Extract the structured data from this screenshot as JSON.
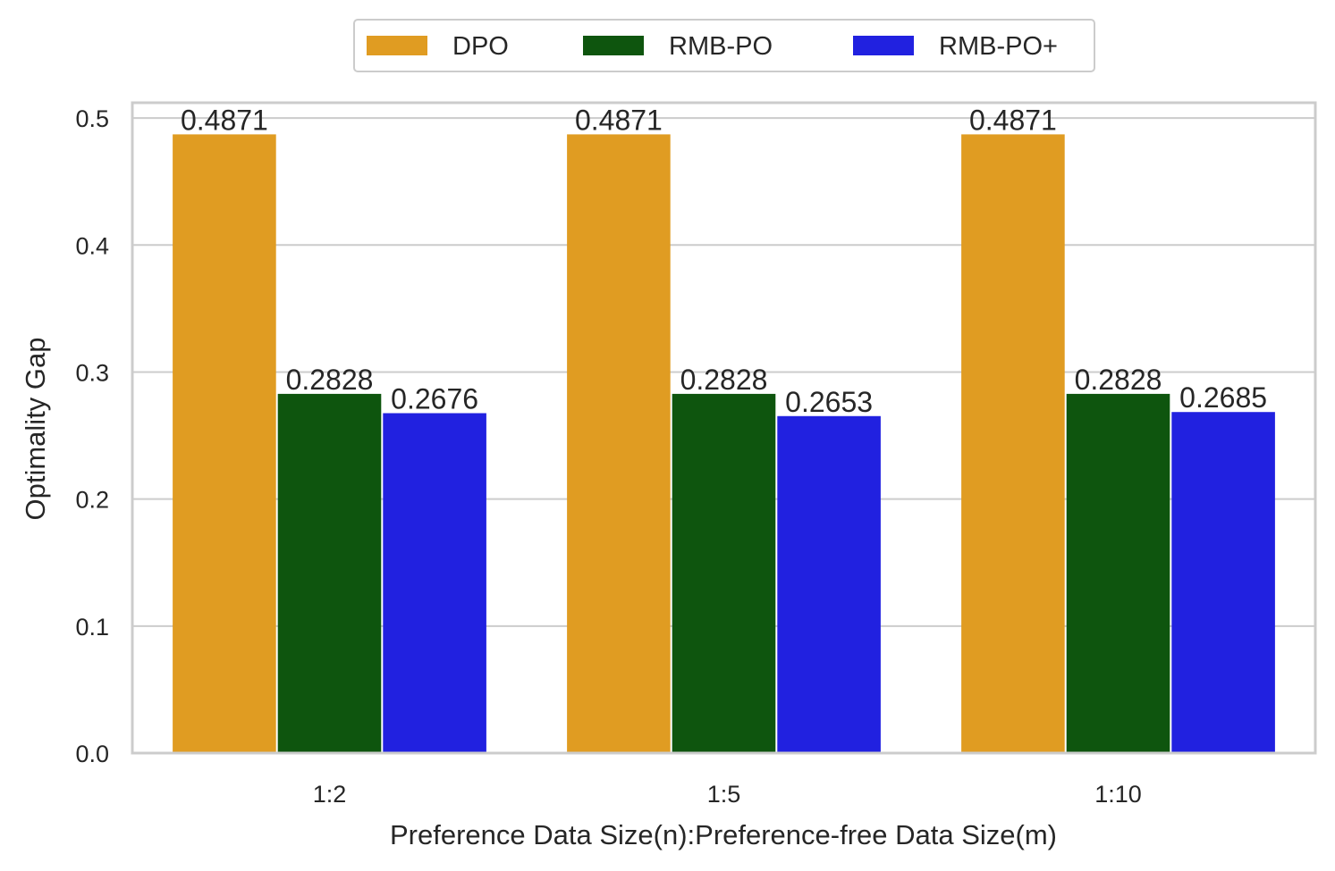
{
  "chart_data": {
    "type": "bar",
    "title": "",
    "xlabel": "Preference Data Size(n):Preference-free Data Size(m)",
    "ylabel": "Optimality Gap",
    "categories": [
      "1:2",
      "1:5",
      "1:10"
    ],
    "series": [
      {
        "name": "DPO",
        "color": "#e09c22",
        "values": [
          0.4871,
          0.4871,
          0.4871
        ],
        "labels": [
          "0.4871",
          "0.4871",
          "0.4871"
        ]
      },
      {
        "name": "RMB-PO",
        "color": "#0e550e",
        "values": [
          0.2828,
          0.2828,
          0.2828
        ],
        "labels": [
          "0.2828",
          "0.2828",
          "0.2828"
        ]
      },
      {
        "name": "RMB-PO+",
        "color": "#2121e0",
        "values": [
          0.2676,
          0.2653,
          0.2685
        ],
        "labels": [
          "0.2676",
          "0.2653",
          "0.2685"
        ]
      }
    ],
    "ylim": [
      0,
      0.512
    ],
    "yticks": [
      "0.0",
      "0.1",
      "0.2",
      "0.3",
      "0.4",
      "0.5"
    ],
    "grid": true,
    "legend_position": "top-center"
  }
}
